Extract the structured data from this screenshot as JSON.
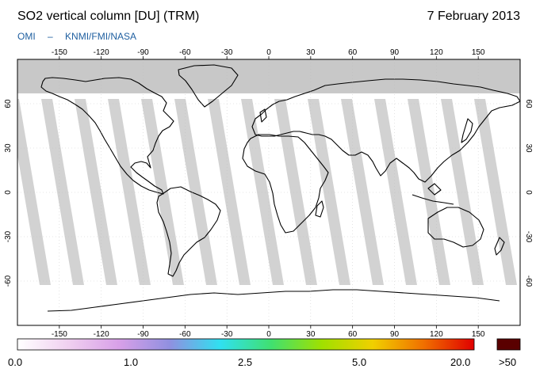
{
  "header": {
    "title": "SO2 vertical column [DU] (TRM)",
    "date": "7 February 2013",
    "credit_instrument": "OMI",
    "credit_separator": "–",
    "credit_agencies": "KNMI/FMI/NASA"
  },
  "map": {
    "longitude_ticks": [
      "-150",
      "-120",
      "-90",
      "-60",
      "-30",
      "0",
      "30",
      "60",
      "90",
      "120",
      "150"
    ],
    "longitude_values": [
      -150,
      -120,
      -90,
      -60,
      -30,
      0,
      30,
      60,
      90,
      120,
      150
    ],
    "latitude_ticks": [
      "60",
      "30",
      "0",
      "-30",
      "-60"
    ],
    "latitude_values": [
      60,
      30,
      0,
      -30,
      -60
    ],
    "lon_range": [
      -180,
      180
    ],
    "lat_range": [
      -90,
      90
    ],
    "no_data_color": "#c8c8c8",
    "polar_night_lat": 67
  },
  "colorbar": {
    "labels": [
      "0.0",
      "1.0",
      "2.5",
      "5.0",
      "20.0"
    ],
    "overflow_label": ">50",
    "colors": [
      "#ffffff",
      "#f0d0f0",
      "#d8a0e8",
      "#9090e0",
      "#30e0f0",
      "#40e070",
      "#a0e000",
      "#f0d000",
      "#f07000",
      "#e00000"
    ],
    "overflow_color": "#5a0000"
  }
}
